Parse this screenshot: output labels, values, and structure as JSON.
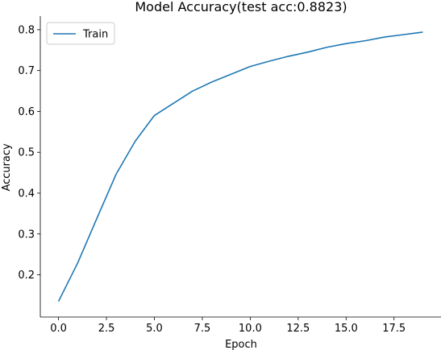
{
  "chart_data": {
    "type": "line",
    "title": "Model Accuracy(test acc:0.8823)",
    "xlabel": "Epoch",
    "ylabel": "Accuracy",
    "xlim": [
      -0.95,
      19.95
    ],
    "ylim": [
      0.0967,
      0.8333
    ],
    "xticks": [
      0,
      2.5,
      5,
      7.5,
      10,
      12.5,
      15,
      17.5
    ],
    "xtick_labels": [
      "0.0",
      "2.5",
      "5.0",
      "7.5",
      "10.0",
      "12.5",
      "15.0",
      "17.5"
    ],
    "yticks": [
      0.2,
      0.3,
      0.4,
      0.5,
      0.6,
      0.7,
      0.8
    ],
    "ytick_labels": [
      "0.2",
      "0.3",
      "0.4",
      "0.5",
      "0.6",
      "0.7",
      "0.8"
    ],
    "grid": false,
    "legend_position": "top-left",
    "series": [
      {
        "name": "Train",
        "color": "#1f77b4",
        "x": [
          0,
          1,
          2,
          3,
          4,
          5,
          6,
          7,
          8,
          9,
          10,
          11,
          12,
          13,
          14,
          15,
          16,
          17,
          18,
          19
        ],
        "y": [
          0.135,
          0.229,
          0.338,
          0.446,
          0.527,
          0.59,
          0.62,
          0.65,
          0.672,
          0.691,
          0.71,
          0.723,
          0.735,
          0.745,
          0.757,
          0.766,
          0.773,
          0.782,
          0.788,
          0.794
        ]
      }
    ]
  }
}
